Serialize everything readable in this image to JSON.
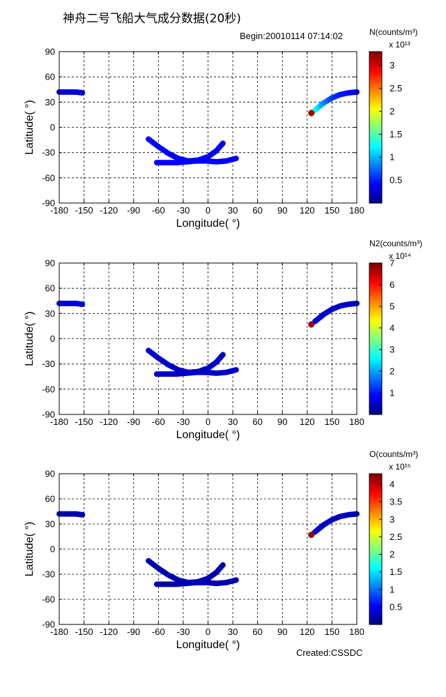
{
  "page": {
    "title": "神舟二号飞船大气成分数据(20秒)",
    "begin": "Begin:20010114  07:14:02",
    "created": "Created:CSSDC"
  },
  "chart_data": [
    {
      "type": "scatter",
      "xlabel": "Longitude( °)",
      "ylabel": "Latitude( °)",
      "xlim": [
        -180,
        180
      ],
      "ylim": [
        -90,
        90
      ],
      "xticks": [
        -180,
        -150,
        -120,
        -90,
        -60,
        -30,
        0,
        30,
        60,
        90,
        120,
        150,
        180
      ],
      "yticks": [
        -90,
        -60,
        -30,
        0,
        30,
        60,
        90
      ],
      "grid": true,
      "colorbar": {
        "label": "N(counts/m³)",
        "exponent": "x 10¹³",
        "range": [
          0,
          3.3
        ],
        "ticks": [
          0.5,
          1,
          1.5,
          2,
          2.5,
          3
        ]
      },
      "series": [
        {
          "x": [
            -180,
            -170,
            -160,
            -152
          ],
          "y": [
            42,
            42,
            42,
            41
          ],
          "color_value": 0.3
        },
        {
          "x": [
            -72,
            -60,
            -48,
            -36,
            -24,
            -12,
            0,
            10,
            18
          ],
          "y": [
            -14,
            -23,
            -31,
            -37,
            -40,
            -39,
            -35,
            -28,
            -19
          ],
          "color_value": 0.4
        },
        {
          "x": [
            -62,
            -50,
            -38,
            -26,
            -14,
            -2,
            10,
            22,
            34
          ],
          "y": [
            -42,
            -42,
            -42,
            -41,
            -40,
            -40,
            -41,
            -40,
            -37
          ],
          "color_value": 0.4
        },
        {
          "x": [
            125,
            130,
            135,
            140,
            150,
            160,
            170,
            180
          ],
          "y": [
            17,
            21,
            25,
            29,
            35,
            39,
            41,
            42
          ],
          "color_values": [
            3.2,
            1.3,
            1.1,
            0.9,
            0.6,
            0.5,
            0.45,
            0.4
          ]
        }
      ]
    },
    {
      "type": "scatter",
      "xlabel": "Longitude( °)",
      "ylabel": "Latitude( °)",
      "xlim": [
        -180,
        180
      ],
      "ylim": [
        -90,
        90
      ],
      "xticks": [
        -180,
        -150,
        -120,
        -90,
        -60,
        -30,
        0,
        30,
        60,
        90,
        120,
        150,
        180
      ],
      "yticks": [
        -90,
        -60,
        -30,
        0,
        30,
        60,
        90
      ],
      "grid": true,
      "colorbar": {
        "label": "N2(counts/m³)",
        "exponent": "x 10¹⁴",
        "range": [
          0,
          7
        ],
        "ticks": [
          1,
          2,
          3,
          4,
          5,
          6,
          7
        ]
      },
      "series": [
        {
          "x": [
            -180,
            -170,
            -160,
            -152
          ],
          "y": [
            42,
            42,
            42,
            41
          ],
          "color_value": 0.6
        },
        {
          "x": [
            -72,
            -60,
            -48,
            -36,
            -24,
            -12,
            0,
            10,
            18
          ],
          "y": [
            -14,
            -23,
            -31,
            -37,
            -40,
            -39,
            -35,
            -28,
            -19
          ],
          "color_value": 0.5
        },
        {
          "x": [
            -62,
            -50,
            -38,
            -26,
            -14,
            -2,
            10,
            22,
            34
          ],
          "y": [
            -42,
            -42,
            -42,
            -41,
            -40,
            -40,
            -41,
            -40,
            -37
          ],
          "color_value": 0.5
        },
        {
          "x": [
            125,
            130,
            135,
            140,
            150,
            160,
            170,
            180
          ],
          "y": [
            17,
            21,
            25,
            29,
            35,
            39,
            41,
            42
          ],
          "color_values": [
            6.8,
            0.6,
            0.6,
            0.6,
            0.5,
            0.5,
            0.5,
            0.5
          ]
        }
      ]
    },
    {
      "type": "scatter",
      "xlabel": "Longitude( °)",
      "ylabel": "Latitude( °)",
      "xlim": [
        -180,
        180
      ],
      "ylim": [
        -90,
        90
      ],
      "xticks": [
        -180,
        -150,
        -120,
        -90,
        -60,
        -30,
        0,
        30,
        60,
        90,
        120,
        150,
        180
      ],
      "yticks": [
        -90,
        -60,
        -30,
        0,
        30,
        60,
        90
      ],
      "grid": true,
      "colorbar": {
        "label": "O(counts/m³)",
        "exponent": "x 10¹⁵",
        "range": [
          0,
          4.3
        ],
        "ticks": [
          0.5,
          1,
          1.5,
          2,
          2.5,
          3,
          3.5,
          4
        ]
      },
      "series": [
        {
          "x": [
            -180,
            -170,
            -160,
            -152
          ],
          "y": [
            42,
            42,
            42,
            41
          ],
          "color_value": 0.2
        },
        {
          "x": [
            -72,
            -60,
            -48,
            -36,
            -24,
            -12,
            0,
            10,
            18
          ],
          "y": [
            -14,
            -23,
            -31,
            -37,
            -40,
            -39,
            -35,
            -28,
            -19
          ],
          "color_value": 0.2
        },
        {
          "x": [
            -62,
            -50,
            -38,
            -26,
            -14,
            -2,
            10,
            22,
            34
          ],
          "y": [
            -42,
            -42,
            -42,
            -41,
            -40,
            -40,
            -41,
            -40,
            -37
          ],
          "color_value": 0.2
        },
        {
          "x": [
            125,
            130,
            135,
            140,
            150,
            160,
            170,
            180
          ],
          "y": [
            17,
            21,
            25,
            29,
            35,
            39,
            41,
            42
          ],
          "color_values": [
            4.2,
            0.3,
            0.3,
            0.3,
            0.25,
            0.25,
            0.25,
            0.25
          ]
        }
      ]
    }
  ]
}
